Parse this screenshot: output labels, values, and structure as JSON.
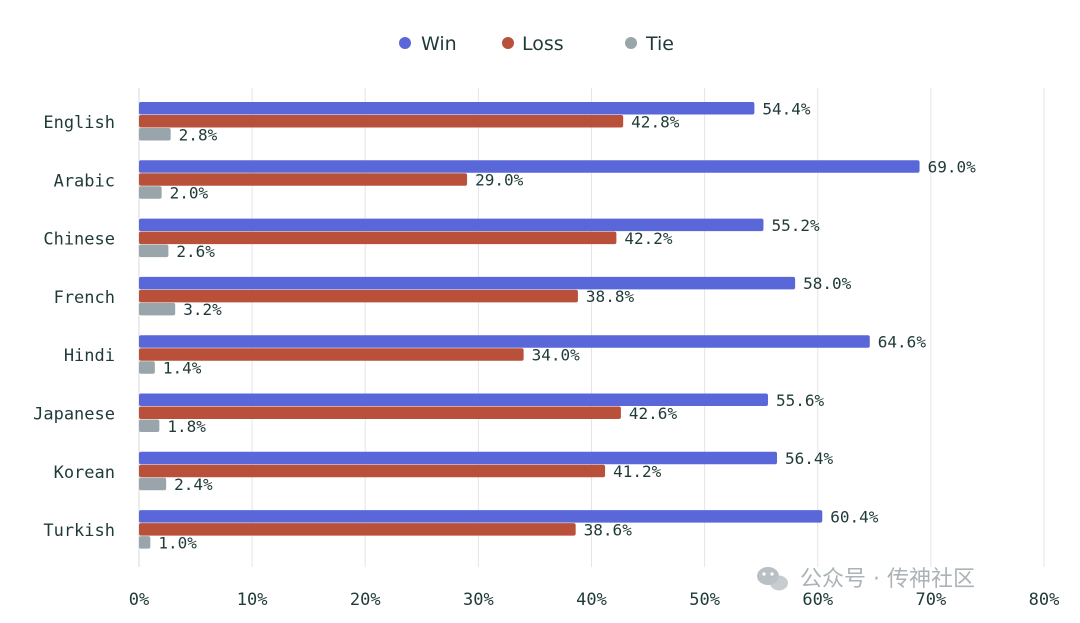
{
  "chart_data": {
    "type": "bar",
    "orientation": "horizontal",
    "categories": [
      "English",
      "Arabic",
      "Chinese",
      "French",
      "Hindi",
      "Japanese",
      "Korean",
      "Turkish"
    ],
    "series": [
      {
        "name": "Win",
        "color": "#5a67d8",
        "values": [
          54.4,
          69.0,
          55.2,
          58.0,
          64.6,
          55.6,
          56.4,
          60.4
        ]
      },
      {
        "name": "Loss",
        "color": "#b9503a",
        "values": [
          42.8,
          29.0,
          42.2,
          38.8,
          34.0,
          42.6,
          41.2,
          38.6
        ]
      },
      {
        "name": "Tie",
        "color": "#99a4ab",
        "values": [
          2.8,
          2.0,
          2.6,
          3.2,
          1.4,
          1.8,
          2.4,
          1.0
        ]
      }
    ],
    "value_suffix": "%",
    "xlim": [
      0,
      80
    ],
    "x_ticks": [
      0,
      10,
      20,
      30,
      40,
      50,
      60,
      70,
      80
    ],
    "x_tick_labels": [
      "0%",
      "10%",
      "20%",
      "30%",
      "40%",
      "50%",
      "60%",
      "70%",
      "80%"
    ],
    "grid": "vertical",
    "legend_position": "top-center",
    "title": "",
    "xlabel": "",
    "ylabel": ""
  },
  "watermark": {
    "text": "公众号 · 传神社区",
    "icon": "wechat-icon"
  }
}
